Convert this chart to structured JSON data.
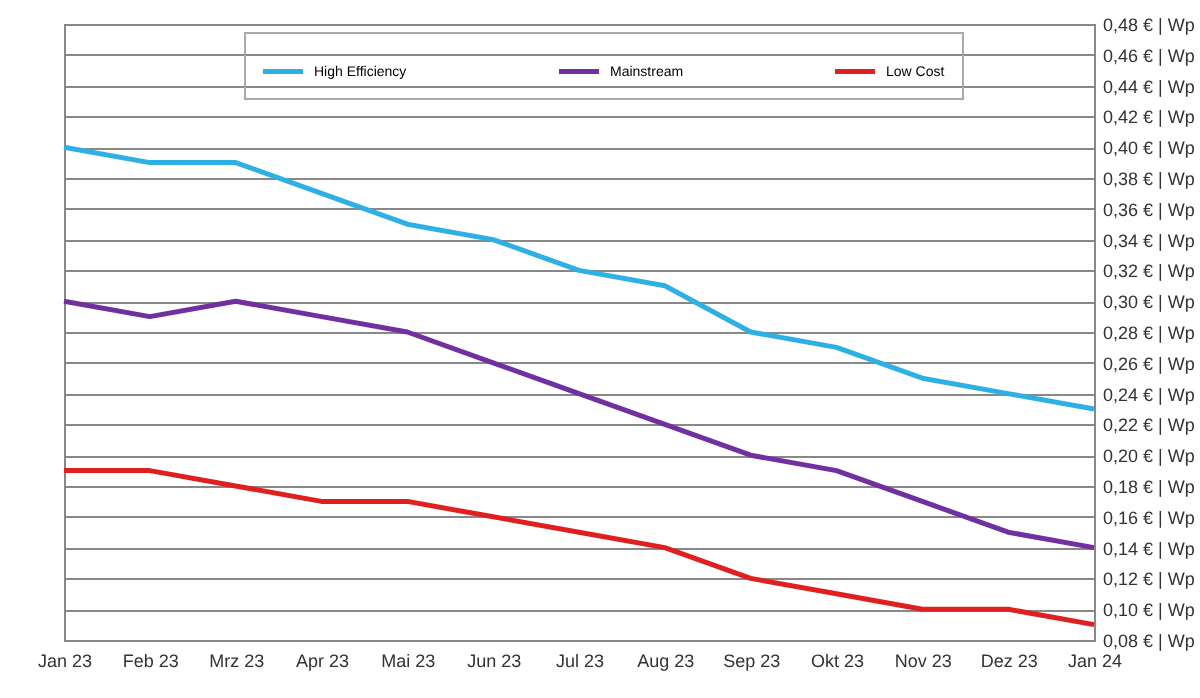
{
  "chart_data": {
    "type": "line",
    "categories": [
      "Jan 23",
      "Feb 23",
      "Mrz 23",
      "Apr 23",
      "Mai 23",
      "Jun 23",
      "Jul 23",
      "Aug 23",
      "Sep 23",
      "Okt 23",
      "Nov 23",
      "Dez 23",
      "Jan 24"
    ],
    "series": [
      {
        "name": "High Efficiency",
        "color": "#2eb0e4",
        "values": [
          0.4,
          0.39,
          0.39,
          0.37,
          0.35,
          0.34,
          0.32,
          0.31,
          0.28,
          0.27,
          0.25,
          0.24,
          0.23
        ]
      },
      {
        "name": "Mainstream",
        "color": "#7030a0",
        "values": [
          0.3,
          0.29,
          0.3,
          0.29,
          0.28,
          0.26,
          0.24,
          0.22,
          0.2,
          0.19,
          0.17,
          0.15,
          0.14
        ]
      },
      {
        "name": "Low Cost",
        "color": "#e02020",
        "values": [
          0.19,
          0.19,
          0.18,
          0.17,
          0.17,
          0.16,
          0.15,
          0.14,
          0.12,
          0.11,
          0.1,
          0.1,
          0.09
        ]
      }
    ],
    "ylim": [
      0.08,
      0.48
    ],
    "yticks": [
      {
        "value": 0.08,
        "label": "0,08 € | Wp"
      },
      {
        "value": 0.1,
        "label": "0,10 € | Wp"
      },
      {
        "value": 0.12,
        "label": "0,12 € | Wp"
      },
      {
        "value": 0.14,
        "label": "0,14 € | Wp"
      },
      {
        "value": 0.16,
        "label": "0,16 € | Wp"
      },
      {
        "value": 0.18,
        "label": "0,18 € | Wp"
      },
      {
        "value": 0.2,
        "label": "0,20 € | Wp"
      },
      {
        "value": 0.22,
        "label": "0,22 € | Wp"
      },
      {
        "value": 0.24,
        "label": "0,24 € | Wp"
      },
      {
        "value": 0.26,
        "label": "0,26 € | Wp"
      },
      {
        "value": 0.28,
        "label": "0,28 € | Wp"
      },
      {
        "value": 0.3,
        "label": "0,30 € | Wp"
      },
      {
        "value": 0.32,
        "label": "0,32 € | Wp"
      },
      {
        "value": 0.34,
        "label": "0,34 € | Wp"
      },
      {
        "value": 0.36,
        "label": "0,36 € | Wp"
      },
      {
        "value": 0.38,
        "label": "0,38 € | Wp"
      },
      {
        "value": 0.4,
        "label": "0,40 € | Wp"
      },
      {
        "value": 0.42,
        "label": "0,42 € | Wp"
      },
      {
        "value": 0.44,
        "label": "0,44 € | Wp"
      },
      {
        "value": 0.46,
        "label": "0,46 € | Wp"
      },
      {
        "value": 0.48,
        "label": "0,48 € | Wp"
      }
    ],
    "grid": "y",
    "legend": "top",
    "marker": "none",
    "line_style": "solid"
  }
}
